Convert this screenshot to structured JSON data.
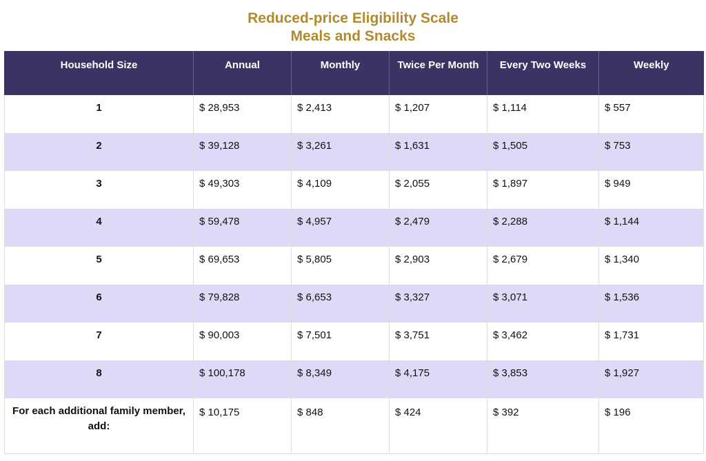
{
  "title": {
    "line1": "Reduced-price Eligibility Scale",
    "line2": "Meals and Snacks"
  },
  "table": {
    "headers": [
      "Household Size",
      "Annual",
      "Monthly",
      "Twice Per Month",
      "Every Two Weeks",
      "Weekly"
    ],
    "rows": [
      [
        "1",
        "$ 28,953",
        "$ 2,413",
        "$ 1,207",
        "$ 1,114",
        "$ 557"
      ],
      [
        "2",
        "$ 39,128",
        "$ 3,261",
        "$ 1,631",
        "$ 1,505",
        "$ 753"
      ],
      [
        "3",
        "$ 49,303",
        "$ 4,109",
        "$ 2,055",
        "$ 1,897",
        "$ 949"
      ],
      [
        "4",
        "$ 59,478",
        "$ 4,957",
        "$ 2,479",
        "$ 2,288",
        "$ 1,144"
      ],
      [
        "5",
        "$ 69,653",
        "$ 5,805",
        "$ 2,903",
        "$ 2,679",
        "$ 1,340"
      ],
      [
        "6",
        "$ 79,828",
        "$ 6,653",
        "$ 3,327",
        "$ 3,071",
        "$ 1,536"
      ],
      [
        "7",
        "$ 90,003",
        "$ 7,501",
        "$ 3,751",
        "$ 3,462",
        "$ 1,731"
      ],
      [
        "8",
        "$ 100,178",
        "$ 8,349",
        "$ 4,175",
        "$ 3,853",
        "$ 1,927"
      ],
      [
        "For each additional family member, add:",
        "$ 10,175",
        "$ 848",
        "$ 424",
        "$ 392",
        "$ 196"
      ]
    ]
  },
  "colors": {
    "title": "#b28a2e",
    "header_bg": "#3b3363",
    "stripe": "#dcdaf7"
  }
}
